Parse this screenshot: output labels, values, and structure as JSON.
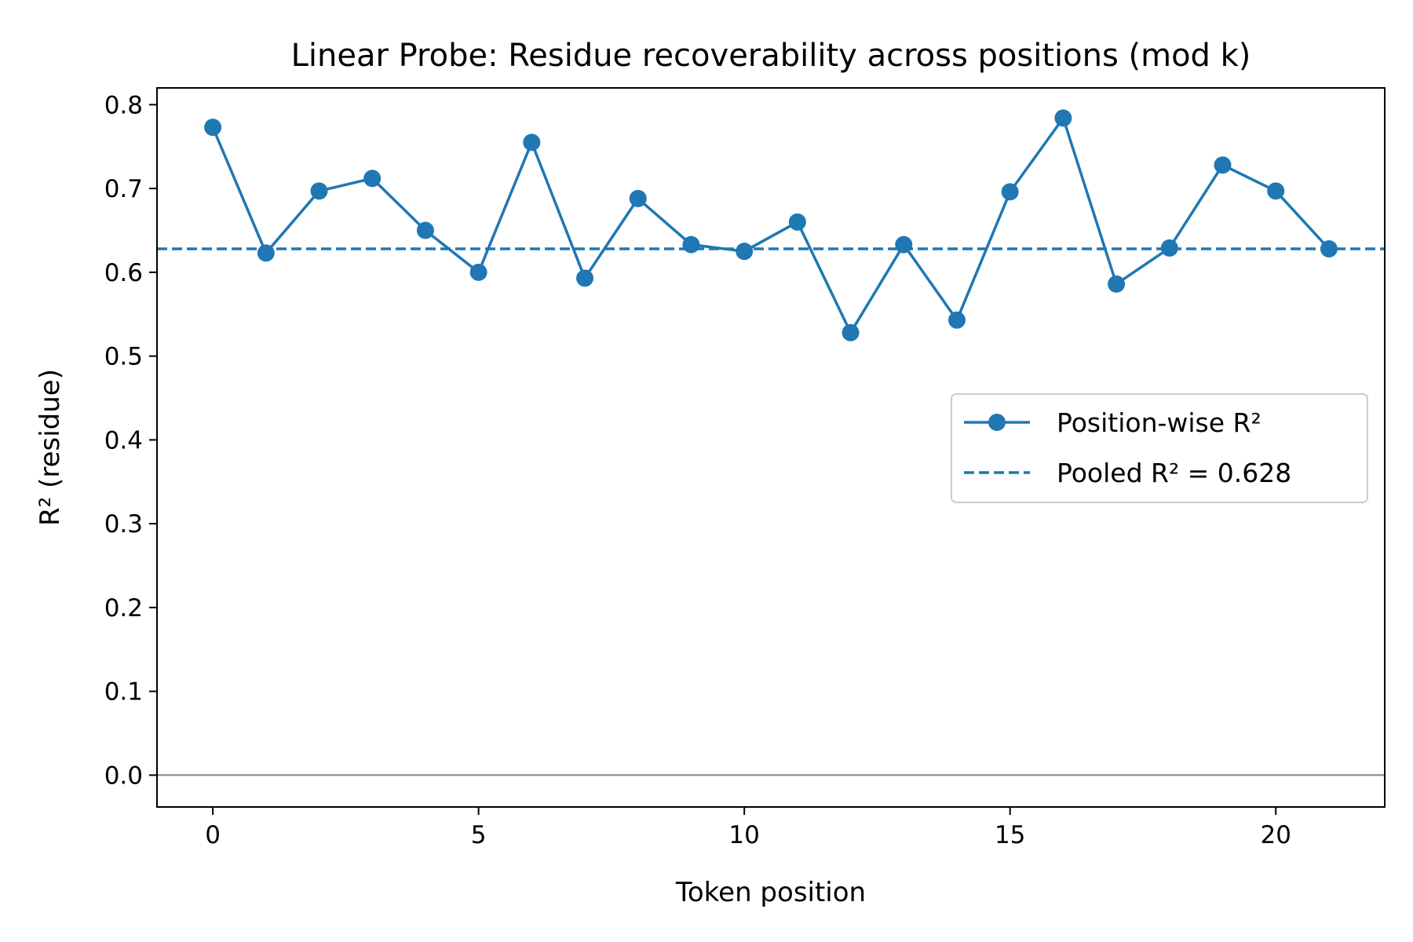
{
  "chart_data": {
    "type": "line",
    "title": "Linear Probe: Residue recoverability across positions (mod k)",
    "xlabel": "Token position",
    "ylabel": "R² (residue)",
    "xlim": [
      -1.05,
      22.05
    ],
    "ylim": [
      -0.038,
      0.82
    ],
    "xticks": [
      0,
      5,
      10,
      15,
      20
    ],
    "xtick_labels": [
      "0",
      "5",
      "10",
      "15",
      "20"
    ],
    "yticks": [
      0.0,
      0.1,
      0.2,
      0.3,
      0.4,
      0.5,
      0.6,
      0.7,
      0.8
    ],
    "ytick_labels": [
      "0.0",
      "0.1",
      "0.2",
      "0.3",
      "0.4",
      "0.5",
      "0.6",
      "0.7",
      "0.8"
    ],
    "grid": false,
    "legend_position": "center-right",
    "series": [
      {
        "name": "Position-wise R²",
        "style": "solid-with-markers",
        "color": "#1f77b4",
        "x": [
          0,
          1,
          2,
          3,
          4,
          5,
          6,
          7,
          8,
          9,
          10,
          11,
          12,
          13,
          14,
          15,
          16,
          17,
          18,
          19,
          20,
          21
        ],
        "values": [
          0.773,
          0.623,
          0.697,
          0.712,
          0.65,
          0.6,
          0.755,
          0.593,
          0.688,
          0.633,
          0.625,
          0.66,
          0.528,
          0.633,
          0.543,
          0.696,
          0.784,
          0.586,
          0.629,
          0.728,
          0.697,
          0.628
        ]
      }
    ],
    "reference_lines": [
      {
        "name": "Pooled R² = 0.628",
        "orientation": "horizontal",
        "value": 0.628,
        "style": "dashed",
        "color": "#1f77b4"
      },
      {
        "name": "",
        "orientation": "horizontal",
        "value": 0.0,
        "style": "solid",
        "color": "#808080"
      }
    ]
  }
}
